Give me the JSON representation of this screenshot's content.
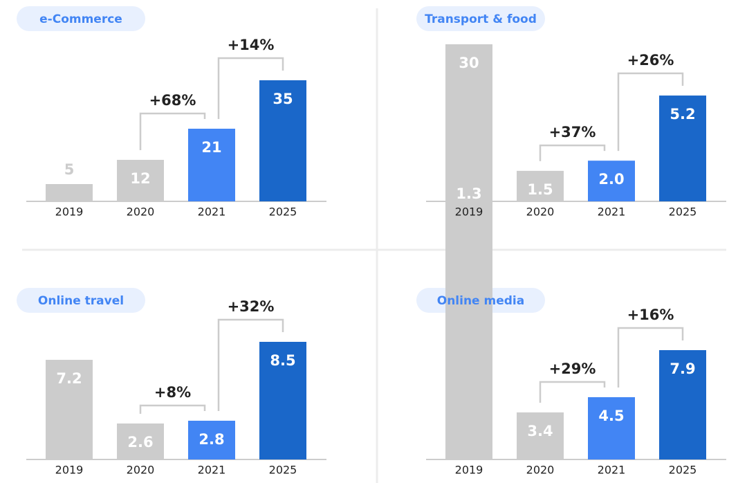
{
  "chart_data": [
    {
      "type": "bar",
      "title": "e-Commerce",
      "categories": [
        "2019",
        "2020",
        "2021",
        "2025"
      ],
      "values": [
        5,
        12,
        21,
        35
      ],
      "colors": [
        "#cccccc",
        "#cccccc",
        "#4285f4",
        "#1a67c9"
      ],
      "annotations": [
        "+68%",
        "+14%"
      ],
      "ylim": [
        0,
        40
      ]
    },
    {
      "type": "bar",
      "title": "Transport & food",
      "categories": [
        "2019",
        "2020",
        "2021",
        "2025"
      ],
      "values": [
        1.3,
        1.5,
        2.0,
        5.2
      ],
      "value_labels": [
        "1.3",
        "1.5",
        "2.0",
        "5.2"
      ],
      "colors": [
        "#cccccc",
        "#cccccc",
        "#4285f4",
        "#1a67c9"
      ],
      "annotations": [
        "+37%",
        "+26%"
      ],
      "ylim": [
        0,
        6.8
      ]
    },
    {
      "type": "bar",
      "title": "Online travel",
      "categories": [
        "2019",
        "2020",
        "2021",
        "2025"
      ],
      "values": [
        7.2,
        2.6,
        2.8,
        8.5
      ],
      "colors": [
        "#cccccc",
        "#cccccc",
        "#4285f4",
        "#1a67c9"
      ],
      "annotations": [
        "+8%",
        "+32%"
      ],
      "ylim": [
        0,
        10
      ]
    },
    {
      "type": "bar",
      "title": "Online media",
      "categories": [
        "2019",
        "2020",
        "2021",
        "2025"
      ],
      "values": [
        30,
        3.4,
        4.5,
        7.9
      ],
      "value_labels": [
        "30",
        "3.4",
        "4.5",
        "7.9"
      ],
      "colors": [
        "#cccccc",
        "#cccccc",
        "#4285f4",
        "#1a67c9"
      ],
      "annotations": [
        "+29%",
        "+16%"
      ],
      "ylim": [
        0,
        10
      ]
    }
  ]
}
